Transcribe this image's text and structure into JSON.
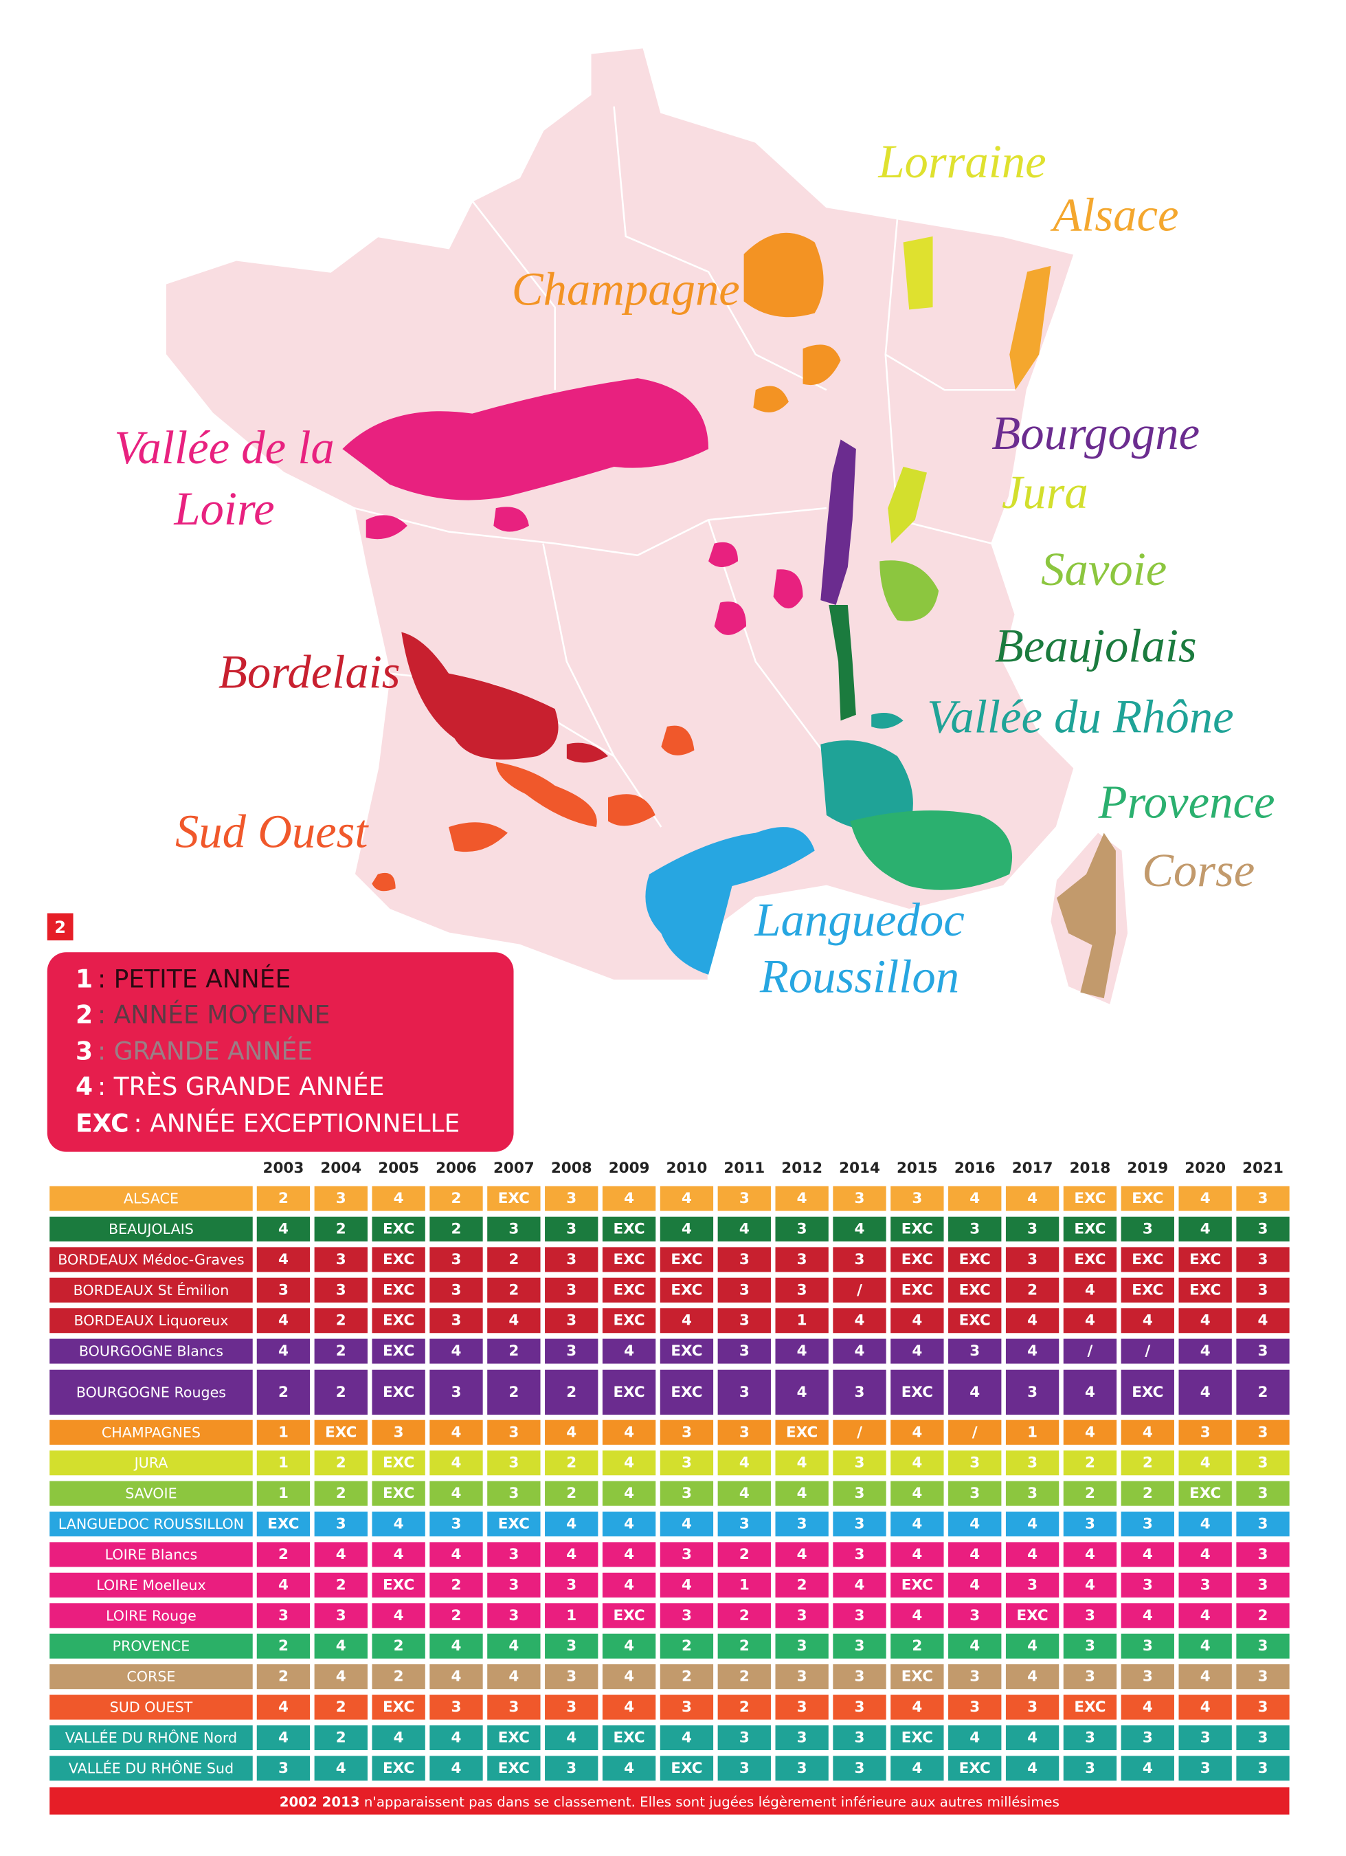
{
  "badge": "2",
  "map": {
    "labels": [
      {
        "lines": [
          "Lorraine"
        ],
        "color": "#dfe12f"
      },
      {
        "lines": [
          "Alsace"
        ],
        "color": "#f4a72e"
      },
      {
        "lines": [
          "Champagne"
        ],
        "color": "#f39323"
      },
      {
        "lines": [
          "Vallée de la",
          "Loire"
        ],
        "color": "#e8217f"
      },
      {
        "lines": [
          "Bourgogne"
        ],
        "color": "#6b2c8f"
      },
      {
        "lines": [
          "Jura"
        ],
        "color": "#d3df2d"
      },
      {
        "lines": [
          "Savoie"
        ],
        "color": "#8cc63f"
      },
      {
        "lines": [
          "Beaujolais"
        ],
        "color": "#1b7b3e"
      },
      {
        "lines": [
          "Vallée du Rhône"
        ],
        "color": "#1fa397"
      },
      {
        "lines": [
          "Provence"
        ],
        "color": "#2bb06f"
      },
      {
        "lines": [
          "Corse"
        ],
        "color": "#c29a6c"
      },
      {
        "lines": [
          "Bordelais"
        ],
        "color": "#c8202f"
      },
      {
        "lines": [
          "Sud Ouest"
        ],
        "color": "#f0582b"
      },
      {
        "lines": [
          "Languedoc",
          "Roussillon"
        ],
        "color": "#27a6e1"
      }
    ]
  },
  "legend": [
    {
      "key": "1",
      "text": ": PETITE ANNÉE"
    },
    {
      "key": "2",
      "text": ": ANNÉE MOYENNE"
    },
    {
      "key": "3",
      "text": ": GRANDE ANNÉE"
    },
    {
      "key": "4",
      "text": ": TRÈS GRANDE ANNÉE"
    },
    {
      "key": "EXC",
      "text": ": ANNÉE EXCEPTIONNELLE"
    }
  ],
  "table": {
    "years": [
      2003,
      2004,
      2005,
      2006,
      2007,
      2008,
      2009,
      2010,
      2011,
      2012,
      2014,
      2015,
      2016,
      2017,
      2018,
      2019,
      2020,
      2021
    ],
    "rows": [
      {
        "region": "ALSACE",
        "color": "#f7a937",
        "values": [
          2,
          3,
          4,
          2,
          "EXC",
          3,
          4,
          4,
          3,
          4,
          3,
          3,
          4,
          4,
          "EXC",
          "EXC",
          4,
          3
        ]
      },
      {
        "region": "BEAUJOLAIS",
        "color": "#1b7b3e",
        "values": [
          4,
          2,
          "EXC",
          2,
          3,
          3,
          "EXC",
          4,
          4,
          3,
          4,
          "EXC",
          3,
          3,
          "EXC",
          3,
          4,
          3
        ]
      },
      {
        "region": "BORDEAUX Médoc-Graves",
        "color": "#c8202f",
        "values": [
          4,
          3,
          "EXC",
          3,
          2,
          3,
          "EXC",
          "EXC",
          3,
          3,
          3,
          "EXC",
          "EXC",
          3,
          "EXC",
          "EXC",
          "EXC",
          3
        ]
      },
      {
        "region": "BORDEAUX St Émilion",
        "color": "#c8202f",
        "values": [
          3,
          3,
          "EXC",
          3,
          2,
          3,
          "EXC",
          "EXC",
          3,
          3,
          "/",
          "EXC",
          "EXC",
          2,
          4,
          "EXC",
          "EXC",
          3
        ]
      },
      {
        "region": "BORDEAUX Liquoreux",
        "color": "#c8202f",
        "values": [
          4,
          2,
          "EXC",
          3,
          4,
          3,
          "EXC",
          4,
          3,
          1,
          4,
          4,
          "EXC",
          4,
          4,
          4,
          4,
          4
        ]
      },
      {
        "region": "BOURGOGNE Blancs",
        "color": "#6b2c8f",
        "values": [
          4,
          2,
          "EXC",
          4,
          2,
          3,
          4,
          "EXC",
          3,
          4,
          4,
          4,
          3,
          4,
          "/",
          "/",
          4,
          3
        ]
      },
      {
        "region": "BOURGOGNE Rouges",
        "color": "#6b2c8f",
        "values": [
          2,
          2,
          "EXC",
          3,
          2,
          2,
          "EXC",
          "EXC",
          3,
          4,
          3,
          "EXC",
          4,
          3,
          4,
          "EXC",
          4,
          2
        ]
      },
      {
        "region": "CHAMPAGNES",
        "color": "#f39123",
        "values": [
          1,
          "EXC",
          3,
          4,
          3,
          4,
          4,
          3,
          3,
          "EXC",
          "/",
          4,
          "/",
          1,
          4,
          4,
          3,
          3
        ]
      },
      {
        "region": "JURA",
        "color": "#d3df2d",
        "values": [
          1,
          2,
          "EXC",
          4,
          3,
          2,
          4,
          3,
          4,
          4,
          3,
          4,
          3,
          3,
          2,
          2,
          4,
          3
        ]
      },
      {
        "region": "SAVOIE",
        "color": "#8cc63f",
        "values": [
          1,
          2,
          "EXC",
          4,
          3,
          2,
          4,
          3,
          4,
          4,
          3,
          4,
          3,
          3,
          2,
          2,
          "EXC",
          3
        ]
      },
      {
        "region": "LANGUEDOC ROUSSILLON",
        "color": "#27a6e1",
        "values": [
          "EXC",
          3,
          4,
          3,
          "EXC",
          4,
          4,
          4,
          3,
          3,
          3,
          4,
          4,
          4,
          3,
          3,
          4,
          3
        ]
      },
      {
        "region": "LOIRE Blancs",
        "color": "#ea1e7f",
        "values": [
          2,
          4,
          4,
          4,
          3,
          4,
          4,
          3,
          2,
          4,
          3,
          4,
          4,
          4,
          4,
          4,
          4,
          3
        ]
      },
      {
        "region": "LOIRE Moelleux",
        "color": "#ea1e7f",
        "values": [
          4,
          2,
          "EXC",
          2,
          3,
          3,
          4,
          4,
          1,
          2,
          4,
          "EXC",
          4,
          3,
          4,
          3,
          3,
          3
        ]
      },
      {
        "region": "LOIRE Rouge",
        "color": "#ea1e7f",
        "values": [
          3,
          3,
          4,
          2,
          3,
          1,
          "EXC",
          3,
          2,
          3,
          3,
          4,
          3,
          "EXC",
          3,
          4,
          4,
          2
        ]
      },
      {
        "region": "PROVENCE",
        "color": "#2bb067",
        "values": [
          2,
          4,
          2,
          4,
          4,
          3,
          4,
          2,
          2,
          3,
          3,
          2,
          4,
          4,
          3,
          3,
          4,
          3
        ]
      },
      {
        "region": "CORSE",
        "color": "#c29a6c",
        "values": [
          2,
          4,
          2,
          4,
          4,
          3,
          4,
          2,
          2,
          3,
          3,
          "EXC",
          3,
          4,
          3,
          3,
          4,
          3
        ]
      },
      {
        "region": "SUD OUEST",
        "color": "#f0582b",
        "values": [
          4,
          2,
          "EXC",
          3,
          3,
          3,
          4,
          3,
          2,
          3,
          3,
          4,
          3,
          3,
          "EXC",
          4,
          4,
          3
        ]
      },
      {
        "region": "VALLÉE DU RHÔNE Nord",
        "color": "#1fa397",
        "values": [
          4,
          2,
          4,
          4,
          "EXC",
          4,
          "EXC",
          4,
          3,
          3,
          3,
          "EXC",
          4,
          4,
          3,
          3,
          3,
          3
        ]
      },
      {
        "region": "VALLÉE DU RHÔNE Sud",
        "color": "#1fa397",
        "values": [
          3,
          4,
          "EXC",
          4,
          "EXC",
          3,
          4,
          "EXC",
          3,
          3,
          3,
          4,
          "EXC",
          4,
          3,
          4,
          3,
          3
        ]
      }
    ]
  },
  "footnote": {
    "bold": "2002 2013",
    "text": " n'apparaissent pas dans se classement. Elles sont jugées légèrement inférieure aux autres millésimes"
  }
}
